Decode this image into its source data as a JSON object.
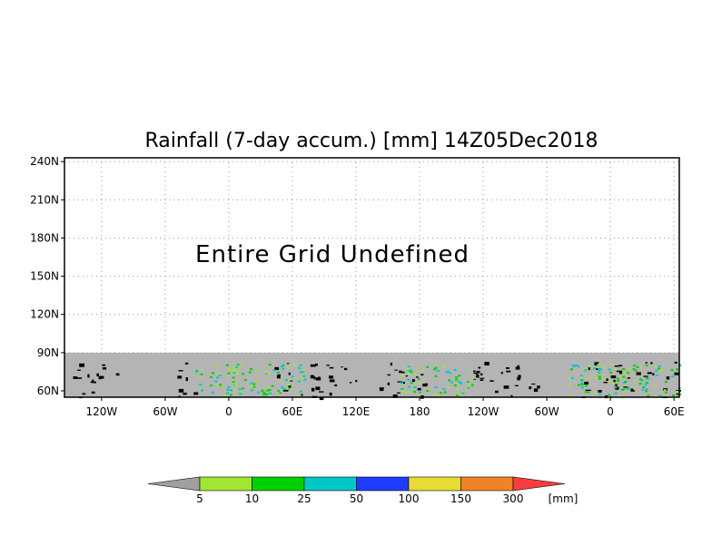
{
  "chart_data": {
    "type": "heatmap",
    "title": "Rainfall (7-day accum.) [mm] 14Z05Dec2018",
    "annotation": "Entire Grid Undefined",
    "y_ticks": [
      "240N",
      "210N",
      "180N",
      "150N",
      "120N",
      "90N",
      "60N"
    ],
    "y_values": [
      240,
      210,
      180,
      150,
      120,
      90,
      60
    ],
    "ylim": [
      55,
      243
    ],
    "x_ticks": [
      "120W",
      "60W",
      "0",
      "60E",
      "120E",
      "180",
      "120W",
      "60W",
      "0",
      "60E"
    ],
    "x_values": [
      -120,
      -60,
      0,
      60,
      120,
      180,
      240,
      300,
      360,
      420
    ],
    "xlim": [
      -155,
      425
    ],
    "grid": true,
    "undefined_region_lat": [
      55,
      90
    ],
    "undefined_color": "#b4b4b4",
    "colorbar": {
      "unit": "[mm]",
      "levels": [
        "5",
        "10",
        "25",
        "50",
        "100",
        "150",
        "300"
      ],
      "colors": [
        "#a0a0a0",
        "#a0e632",
        "#00d200",
        "#00c8c8",
        "#1e3cff",
        "#e6dc32",
        "#f08228",
        "#fa3c3c"
      ]
    }
  }
}
